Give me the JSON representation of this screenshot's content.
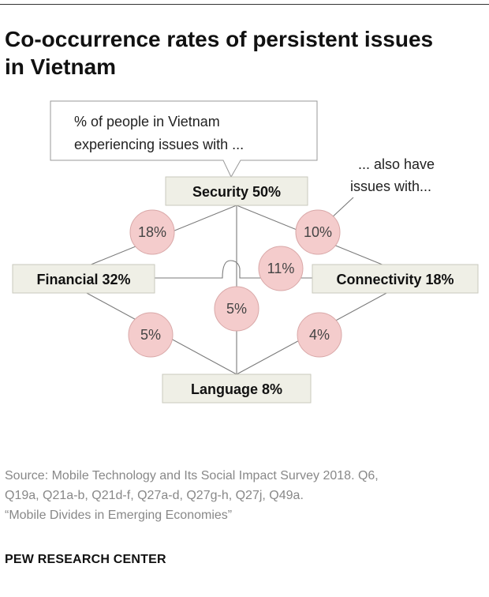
{
  "title": {
    "line1": "Co-occurrence rates of persistent issues",
    "line2": "in Vietnam"
  },
  "callout": {
    "line1": "% of people in Vietnam",
    "line2": "experiencing issues with ..."
  },
  "also_note": {
    "line1": "... also have",
    "line2": "issues with..."
  },
  "nodes": {
    "security": "Security 50%",
    "financial": "Financial 32%",
    "connectivity": "Connectivity 18%",
    "language": "Language 8%"
  },
  "links": {
    "security_financial": "18%",
    "security_connectivity": "10%",
    "financial_connectivity": "11%",
    "security_language": "5%",
    "financial_language": "5%",
    "connectivity_language": "4%"
  },
  "source": {
    "line1": "Source: Mobile Technology and Its Social Impact Survey 2018. Q6,",
    "line2": "Q19a, Q21a-b, Q21d-f, Q27a-d, Q27g-h, Q27j, Q49a.",
    "line3": "“Mobile Divides in Emerging Economies”"
  },
  "brand": "PEW RESEARCH CENTER",
  "colors": {
    "node_fill": "#efefe6",
    "circle_fill": "#f4cccc",
    "line": "#7a7a7a",
    "source_text": "#888888"
  }
}
